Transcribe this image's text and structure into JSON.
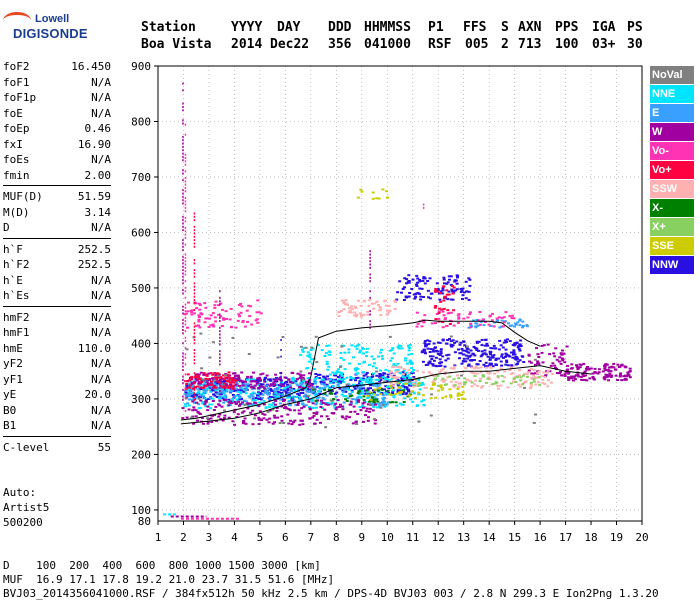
{
  "logo": {
    "line1": "Lowell",
    "line2": "DIGISONDE"
  },
  "header": {
    "labels": [
      "Station",
      "YYYY",
      "DAY",
      "DDD",
      "HHMMSS",
      "P1",
      "FFS",
      "S",
      "AXN",
      "PPS",
      "IGA",
      "PS"
    ],
    "values": [
      "Boa Vista",
      "2014",
      "Dec22",
      "356",
      "041000",
      "RSF",
      "005",
      "2",
      "713",
      "100",
      "03+",
      "30"
    ]
  },
  "params": {
    "group1": [
      {
        "k": "foF2",
        "v": "16.450"
      },
      {
        "k": "foF1",
        "v": "N/A"
      },
      {
        "k": "foF1p",
        "v": "N/A"
      },
      {
        "k": "foE",
        "v": "N/A"
      },
      {
        "k": "foEp",
        "v": "0.46"
      },
      {
        "k": "fxI",
        "v": "16.90"
      },
      {
        "k": "foEs",
        "v": "N/A"
      },
      {
        "k": "fmin",
        "v": "2.00"
      }
    ],
    "group2": [
      {
        "k": "MUF(D)",
        "v": "51.59"
      },
      {
        "k": "M(D)",
        "v": "3.14"
      },
      {
        "k": "D",
        "v": "N/A"
      }
    ],
    "group3": [
      {
        "k": "h`F",
        "v": "252.5"
      },
      {
        "k": "h`F2",
        "v": "252.5"
      },
      {
        "k": "h`E",
        "v": "N/A"
      },
      {
        "k": "h`Es",
        "v": "N/A"
      }
    ],
    "group4": [
      {
        "k": "hmF2",
        "v": "N/A"
      },
      {
        "k": "hmF1",
        "v": "N/A"
      },
      {
        "k": "hmE",
        "v": "110.0"
      },
      {
        "k": "yF2",
        "v": "N/A"
      },
      {
        "k": "yF1",
        "v": "N/A"
      },
      {
        "k": "yE",
        "v": "20.0"
      },
      {
        "k": "B0",
        "v": "N/A"
      },
      {
        "k": "B1",
        "v": "N/A"
      }
    ],
    "group5": [
      {
        "k": "C-level",
        "v": "55"
      }
    ]
  },
  "auto": {
    "line1": "Auto:",
    "line2": "Artist5",
    "line3": "500200"
  },
  "legend": [
    {
      "label": "NoVal",
      "color": "#808080"
    },
    {
      "label": "NNE",
      "color": "#00e5ff"
    },
    {
      "label": "E",
      "color": "#3aa0ff"
    },
    {
      "label": "W",
      "color": "#a000a0"
    },
    {
      "label": "Vo-",
      "color": "#ff33b4"
    },
    {
      "label": "Vo+",
      "color": "#ff0040"
    },
    {
      "label": "SSW",
      "color": "#ffb0b0"
    },
    {
      "label": "X-",
      "color": "#008000"
    },
    {
      "label": "X+",
      "color": "#88d060"
    },
    {
      "label": "SSE",
      "color": "#cccc00"
    },
    {
      "label": "NNW",
      "color": "#2a10e0"
    }
  ],
  "footer": {
    "d_line": "D    100  200  400  600  800 1000 1500 3000 [km]",
    "muf_line": "MUF  16.9 17.1 17.8 19.2 21.0 23.7 31.5 51.6 [MHz]",
    "info_line": "BVJ03_2014356041000.RSF / 384fx512h 50 kHz 2.5 km / DPS-4D BVJ03 003 / 2.8 N 299.3 E Ion2Png 1.3.20"
  },
  "chart_data": {
    "type": "scatter",
    "xlim": [
      1,
      20
    ],
    "ylim": [
      80,
      900
    ],
    "xticks": [
      1,
      2,
      3,
      4,
      5,
      6,
      7,
      8,
      9,
      10,
      11,
      12,
      13,
      14,
      15,
      16,
      17,
      18,
      19,
      20
    ],
    "yticks": [
      100,
      200,
      300,
      400,
      500,
      600,
      700,
      800,
      900
    ],
    "grid": "dotted",
    "legend_position": "right",
    "profile_line": {
      "x": [
        1.9,
        2.5,
        3.0,
        4.0,
        5.0,
        6.0,
        6.8,
        7.0,
        7.3,
        8.0,
        9.0,
        10.0,
        11.0,
        11.5,
        12.0,
        13.0,
        14.0,
        14.5,
        15.0,
        15.5,
        16.0
      ],
      "y": [
        262,
        265,
        270,
        280,
        290,
        305,
        320,
        340,
        410,
        422,
        428,
        432,
        437,
        442,
        440,
        440,
        440,
        437,
        420,
        405,
        395
      ]
    },
    "lower_line": {
      "x": [
        1.9,
        3,
        4,
        5,
        6,
        7,
        8,
        9,
        10,
        11,
        12,
        13,
        14,
        15,
        16,
        17,
        18
      ],
      "y": [
        255,
        260,
        265,
        275,
        290,
        300,
        320,
        325,
        330,
        335,
        345,
        350,
        350,
        355,
        360,
        350,
        345
      ]
    },
    "clusters": [
      {
        "series": "NNW",
        "x": [
          2.0,
          7.0
        ],
        "y": [
          300,
          340
        ],
        "n": 260
      },
      {
        "series": "NNW",
        "x": [
          7.0,
          11.0
        ],
        "y": [
          310,
          350
        ],
        "n": 200
      },
      {
        "series": "NNW",
        "x": [
          11.3,
          15.3
        ],
        "y": [
          360,
          410
        ],
        "n": 240
      },
      {
        "series": "NNW",
        "x": [
          10.3,
          13.2
        ],
        "y": [
          480,
          525
        ],
        "n": 110
      },
      {
        "series": "NNE",
        "x": [
          2.0,
          11.5
        ],
        "y": [
          285,
          340
        ],
        "n": 340
      },
      {
        "series": "NNE",
        "x": [
          6.5,
          11.0
        ],
        "y": [
          330,
          400
        ],
        "n": 160
      },
      {
        "series": "E",
        "x": [
          2.0,
          10.0
        ],
        "y": [
          290,
          330
        ],
        "n": 220
      },
      {
        "series": "E",
        "x": [
          13.0,
          15.5
        ],
        "y": [
          430,
          445
        ],
        "n": 40
      },
      {
        "series": "W",
        "x": [
          1.9,
          9.5
        ],
        "y": [
          255,
          300
        ],
        "n": 220
      },
      {
        "series": "W",
        "x": [
          2.2,
          7.0
        ],
        "y": [
          320,
          350
        ],
        "n": 140
      },
      {
        "series": "W",
        "x": [
          17.0,
          19.5
        ],
        "y": [
          335,
          365
        ],
        "n": 130
      },
      {
        "series": "W",
        "x": [
          15.5,
          17.0
        ],
        "y": [
          340,
          400
        ],
        "n": 60
      },
      {
        "series": "Vo-",
        "x": [
          2.0,
          5.0
        ],
        "y": [
          430,
          480
        ],
        "n": 80
      },
      {
        "series": "Vo-",
        "x": [
          11.0,
          15.0
        ],
        "y": [
          430,
          460
        ],
        "n": 60
      },
      {
        "series": "Vo+",
        "x": [
          2.0,
          4.0
        ],
        "y": [
          320,
          350
        ],
        "n": 70
      },
      {
        "series": "Vo+",
        "x": [
          11.8,
          12.6
        ],
        "y": [
          435,
          510
        ],
        "n": 30
      },
      {
        "series": "SSW",
        "x": [
          8.0,
          10.3
        ],
        "y": [
          450,
          480
        ],
        "n": 60
      },
      {
        "series": "SSW",
        "x": [
          10.0,
          16.5
        ],
        "y": [
          320,
          360
        ],
        "n": 160
      },
      {
        "series": "X-",
        "x": [
          7.0,
          11.0
        ],
        "y": [
          295,
          320
        ],
        "n": 40
      },
      {
        "series": "X+",
        "x": [
          11.0,
          16.0
        ],
        "y": [
          325,
          345
        ],
        "n": 50
      },
      {
        "series": "SSE",
        "x": [
          9.0,
          13.0
        ],
        "y": [
          300,
          330
        ],
        "n": 50
      },
      {
        "series": "SSE",
        "x": [
          8.8,
          10.0
        ],
        "y": [
          660,
          680
        ],
        "n": 10
      },
      {
        "series": "NoVal",
        "x": [
          2.0,
          16.0
        ],
        "y": [
          250,
          420
        ],
        "n": 60
      }
    ],
    "spikes": [
      {
        "series": "W",
        "x": 1.95,
        "y": [
          300,
          880
        ]
      },
      {
        "series": "Vo-",
        "x": 2.05,
        "y": [
          280,
          800
        ]
      },
      {
        "series": "Vo+",
        "x": 2.4,
        "y": [
          300,
          640
        ]
      },
      {
        "series": "W",
        "x": 3.4,
        "y": [
          310,
          500
        ]
      },
      {
        "series": "NNW",
        "x": 5.8,
        "y": [
          300,
          420
        ]
      },
      {
        "series": "W",
        "x": 9.3,
        "y": [
          430,
          580
        ]
      },
      {
        "series": "Vo-",
        "x": 11.4,
        "y": [
          640,
          660
        ]
      }
    ],
    "bottom_marks": [
      {
        "series": "W",
        "x": [
          1.5,
          2.9
        ],
        "y": 88
      },
      {
        "series": "Vo-",
        "x": [
          1.9,
          4.2
        ],
        "y": 84
      },
      {
        "series": "NNE",
        "x": [
          1.2,
          1.7
        ],
        "y": 92
      }
    ]
  }
}
